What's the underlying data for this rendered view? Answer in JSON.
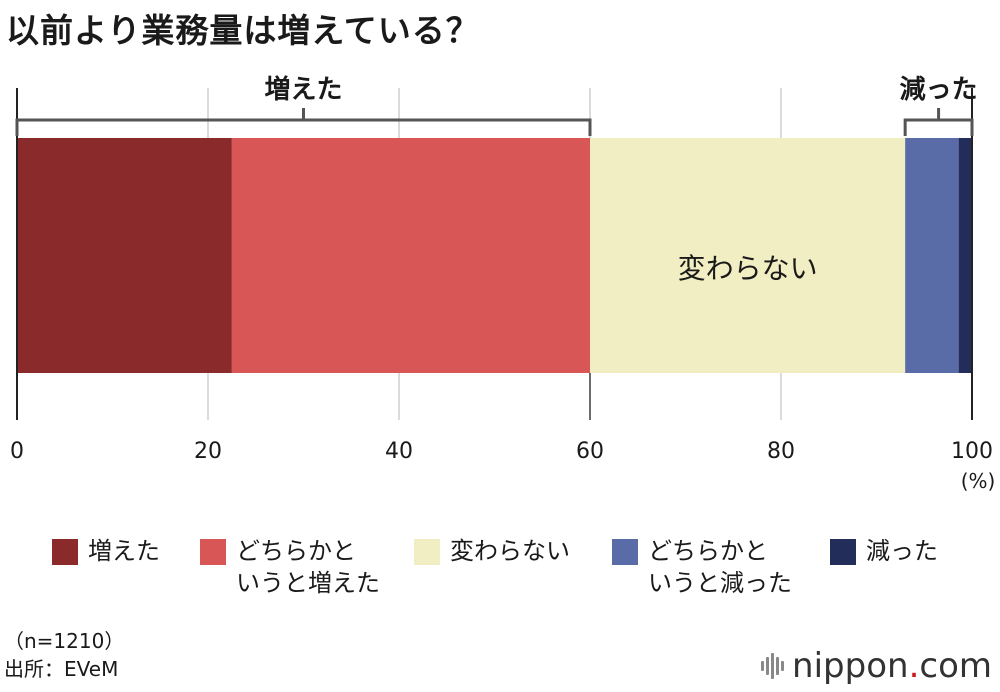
{
  "title": "以前より業務量は増えている？",
  "chart_data": {
    "type": "bar",
    "orientation": "horizontal-stacked",
    "series": [
      {
        "name": "増えた",
        "value": 22.5,
        "color": "#8b2a2a"
      },
      {
        "name": "どちらかと\nいうと増えた",
        "value": 37.5,
        "color": "#d95656"
      },
      {
        "name": "変わらない",
        "value": 33.0,
        "color": "#f2eec3"
      },
      {
        "name": "どちらかと\nいうと減った",
        "value": 5.6,
        "color": "#5a6ca8"
      },
      {
        "name": "減った",
        "value": 1.4,
        "color": "#222d5a"
      }
    ],
    "inner_label": "変わらない",
    "bracket_labels": [
      {
        "label": "増えた",
        "from": 0,
        "to": 60
      },
      {
        "label": "減った",
        "from": 93,
        "to": 100
      }
    ],
    "xlim": [
      0,
      100
    ],
    "xticks": [
      "0",
      "20",
      "40",
      "60",
      "80",
      "100"
    ],
    "unit": "(%)",
    "grid": true
  },
  "notes": {
    "sample": "（n=1210）",
    "source": "出所：EVeM"
  },
  "logo": {
    "text": "nippon",
    "dot": ".",
    "suffix": "com"
  }
}
